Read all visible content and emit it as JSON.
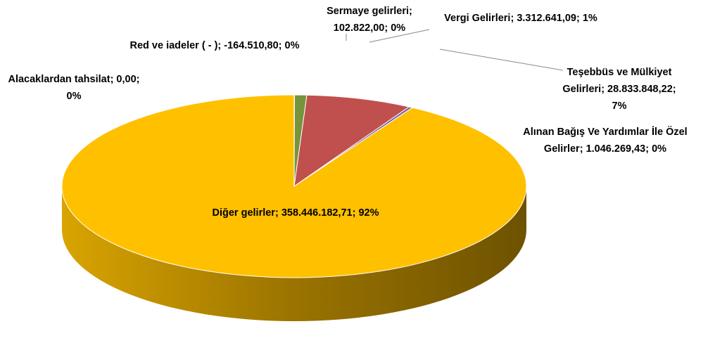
{
  "chart_data": {
    "type": "pie",
    "categories": [
      "Sermaye gelirleri",
      "Vergi Gelirleri",
      "Teşebbüs ve Mülkiyet Gelirleri",
      "Alınan Bağış Ve Yardımlar İle Özel Gelirler",
      "Diğer gelirler",
      "Alacaklardan tahsilat",
      "Red ve iadeler ( - )"
    ],
    "values": [
      102822.0,
      3312641.09,
      28833848.22,
      1046269.43,
      358446182.71,
      0.0,
      -164510.8
    ],
    "value_labels": [
      "102.822,00",
      "3.312.641,09",
      "28.833.848,22",
      "1.046.269,43",
      "358.446.182,71",
      "0,00",
      "-164.510,80"
    ],
    "percents": [
      0,
      1,
      7,
      0,
      92,
      0,
      0
    ],
    "percent_labels": [
      "0%",
      "1%",
      "7%",
      "0%",
      "92%",
      "0%",
      "0%"
    ],
    "colors": [
      "#4f81bd",
      "#77933c",
      "#c0504d",
      "#8064a2",
      "#ffc000",
      "#4bacc6",
      "#f79646"
    ]
  }
}
